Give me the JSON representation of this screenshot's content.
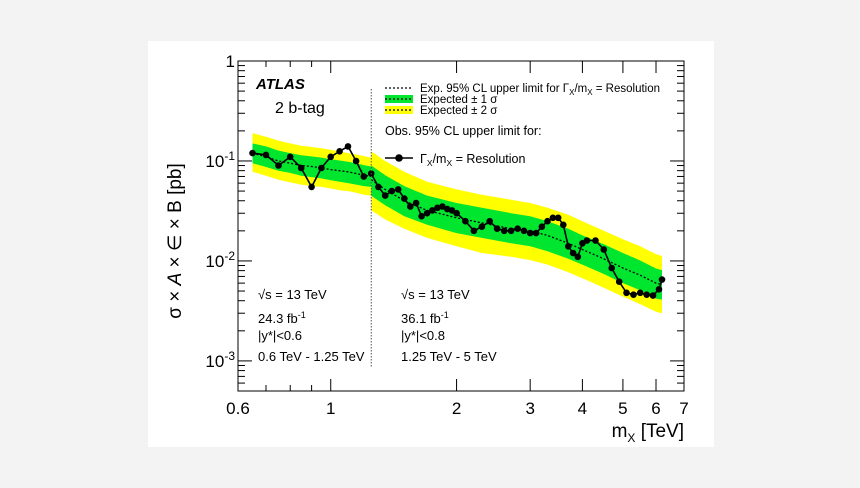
{
  "chart_data": {
    "type": "line",
    "title": "",
    "xlabel": "m_X [TeV]",
    "xlabel_main": "m",
    "xlabel_sub": "X",
    "xlabel_unit": " [TeV]",
    "ylabel": "σ × A × ∈ × B [pb]",
    "ylabel_parts": [
      "σ × ",
      "A",
      " × ∈ × B [pb]"
    ],
    "xscale": "log",
    "yscale": "log",
    "xlim": [
      0.6,
      7
    ],
    "ylim": [
      0.0005,
      1
    ],
    "x_ticks": [
      {
        "value": 0.6,
        "label": "0.6"
      },
      {
        "value": 1,
        "label": "1"
      },
      {
        "value": 2,
        "label": "2"
      },
      {
        "value": 3,
        "label": "3"
      },
      {
        "value": 4,
        "label": "4"
      },
      {
        "value": 5,
        "label": "5"
      },
      {
        "value": 6,
        "label": "6"
      },
      {
        "value": 7,
        "label": "7"
      }
    ],
    "y_ticks": [
      {
        "value": 1,
        "base": "1",
        "exp": ""
      },
      {
        "value": 0.1,
        "base": "10",
        "exp": "-1"
      },
      {
        "value": 0.01,
        "base": "10",
        "exp": "-2"
      },
      {
        "value": 0.001,
        "base": "10",
        "exp": "-3"
      }
    ],
    "experiment_label": "ATLAS",
    "category_label": "2 b-tag",
    "legend": {
      "placement": "top-right",
      "expected_line": "Exp. 95% CL upper limit for Γ",
      "expected_line_sub": "X",
      "expected_line_mid": "/m",
      "expected_line_sub2": "X",
      "expected_line_end": " = Resolution",
      "band1": "Expected ± 1 σ",
      "band2": "Expected ± 2 σ",
      "observed_header": "Obs. 95% CL upper limit for:",
      "observed_line": "Γ",
      "observed_line_sub": "X",
      "observed_line_mid": "/m",
      "observed_line_sub2": "X",
      "observed_line_end": " = Resolution"
    },
    "boundary_x": 1.25,
    "regions": [
      {
        "sqrt_s": "√s = 13 TeV",
        "lumi": "24.3 fb",
        "lumi_exp": "-1",
        "rapidity": "|y*|<0.6",
        "mass_range": "0.6 TeV - 1.25 TeV"
      },
      {
        "sqrt_s": "√s = 13 TeV",
        "lumi": "36.1 fb",
        "lumi_exp": "-1",
        "rapidity": "|y*|<0.8",
        "mass_range": "1.25 TeV - 5 TeV"
      }
    ],
    "colors": {
      "band1": "#00e62f",
      "band2": "#ffff00",
      "expected": "#000000",
      "observed": "#000000"
    },
    "expected_low": {
      "x": [
        0.65,
        0.7,
        0.75,
        0.8,
        0.85,
        0.9,
        0.95,
        1.0,
        1.05,
        1.1,
        1.15,
        1.2,
        1.25
      ],
      "y": [
        0.12,
        0.11,
        0.1,
        0.095,
        0.09,
        0.088,
        0.085,
        0.082,
        0.08,
        0.078,
        0.075,
        0.072,
        0.07
      ],
      "s1_lo": [
        0.095,
        0.087,
        0.08,
        0.076,
        0.071,
        0.069,
        0.067,
        0.064,
        0.062,
        0.06,
        0.058,
        0.056,
        0.055
      ],
      "s1_hi": [
        0.15,
        0.14,
        0.127,
        0.12,
        0.114,
        0.111,
        0.108,
        0.104,
        0.101,
        0.098,
        0.095,
        0.091,
        0.088
      ],
      "s2_lo": [
        0.078,
        0.071,
        0.065,
        0.061,
        0.058,
        0.056,
        0.055,
        0.053,
        0.051,
        0.05,
        0.048,
        0.046,
        0.045
      ],
      "s2_hi": [
        0.19,
        0.175,
        0.16,
        0.15,
        0.142,
        0.138,
        0.134,
        0.129,
        0.125,
        0.12,
        0.116,
        0.112,
        0.108
      ]
    },
    "expected_high": {
      "x": [
        1.25,
        1.35,
        1.5,
        1.7,
        2.0,
        2.3,
        2.7,
        3.0,
        3.3,
        3.7,
        4.0,
        4.5,
        5.0,
        5.5,
        6.0,
        6.2
      ],
      "y": [
        0.065,
        0.052,
        0.04,
        0.032,
        0.027,
        0.024,
        0.021,
        0.02,
        0.018,
        0.015,
        0.013,
        0.0105,
        0.0085,
        0.0072,
        0.006,
        0.0058
      ],
      "s1_lo": [
        0.045,
        0.036,
        0.028,
        0.023,
        0.019,
        0.017,
        0.015,
        0.014,
        0.0125,
        0.0105,
        0.0092,
        0.0074,
        0.006,
        0.0051,
        0.0042,
        0.0041
      ],
      "s1_hi": [
        0.09,
        0.072,
        0.056,
        0.045,
        0.038,
        0.034,
        0.03,
        0.028,
        0.025,
        0.021,
        0.018,
        0.0147,
        0.012,
        0.0101,
        0.0084,
        0.0081
      ],
      "s2_lo": [
        0.032,
        0.026,
        0.021,
        0.017,
        0.014,
        0.012,
        0.011,
        0.0102,
        0.0092,
        0.0077,
        0.0067,
        0.0054,
        0.0044,
        0.0037,
        0.0031,
        0.003
      ],
      "s2_hi": [
        0.125,
        0.1,
        0.078,
        0.062,
        0.052,
        0.046,
        0.041,
        0.038,
        0.034,
        0.029,
        0.025,
        0.02,
        0.0165,
        0.014,
        0.0117,
        0.0112
      ]
    },
    "observed_low": {
      "x": [
        0.65,
        0.7,
        0.75,
        0.8,
        0.85,
        0.9,
        0.95,
        1.0,
        1.05,
        1.1,
        1.15,
        1.2
      ],
      "y": [
        0.12,
        0.115,
        0.09,
        0.11,
        0.085,
        0.055,
        0.085,
        0.11,
        0.125,
        0.14,
        0.1,
        0.07
      ]
    },
    "observed_high": {
      "x": [
        1.25,
        1.3,
        1.35,
        1.4,
        1.45,
        1.5,
        1.55,
        1.6,
        1.65,
        1.7,
        1.75,
        1.8,
        1.85,
        1.9,
        1.95,
        2.0,
        2.1,
        2.2,
        2.3,
        2.4,
        2.5,
        2.6,
        2.7,
        2.8,
        2.9,
        3.0,
        3.1,
        3.2,
        3.3,
        3.4,
        3.5,
        3.6,
        3.7,
        3.8,
        3.9,
        4.0,
        4.1,
        4.3,
        4.5,
        4.7,
        4.9,
        5.1,
        5.3,
        5.5,
        5.7,
        5.9,
        6.1,
        6.2
      ],
      "y": [
        0.075,
        0.055,
        0.045,
        0.05,
        0.052,
        0.042,
        0.035,
        0.038,
        0.028,
        0.03,
        0.032,
        0.034,
        0.035,
        0.033,
        0.032,
        0.03,
        0.025,
        0.02,
        0.022,
        0.025,
        0.021,
        0.02,
        0.02,
        0.021,
        0.02,
        0.019,
        0.019,
        0.022,
        0.025,
        0.027,
        0.027,
        0.023,
        0.014,
        0.012,
        0.011,
        0.015,
        0.016,
        0.016,
        0.013,
        0.0085,
        0.0062,
        0.0048,
        0.0046,
        0.0048,
        0.0046,
        0.0045,
        0.0052,
        0.0065
      ]
    }
  }
}
